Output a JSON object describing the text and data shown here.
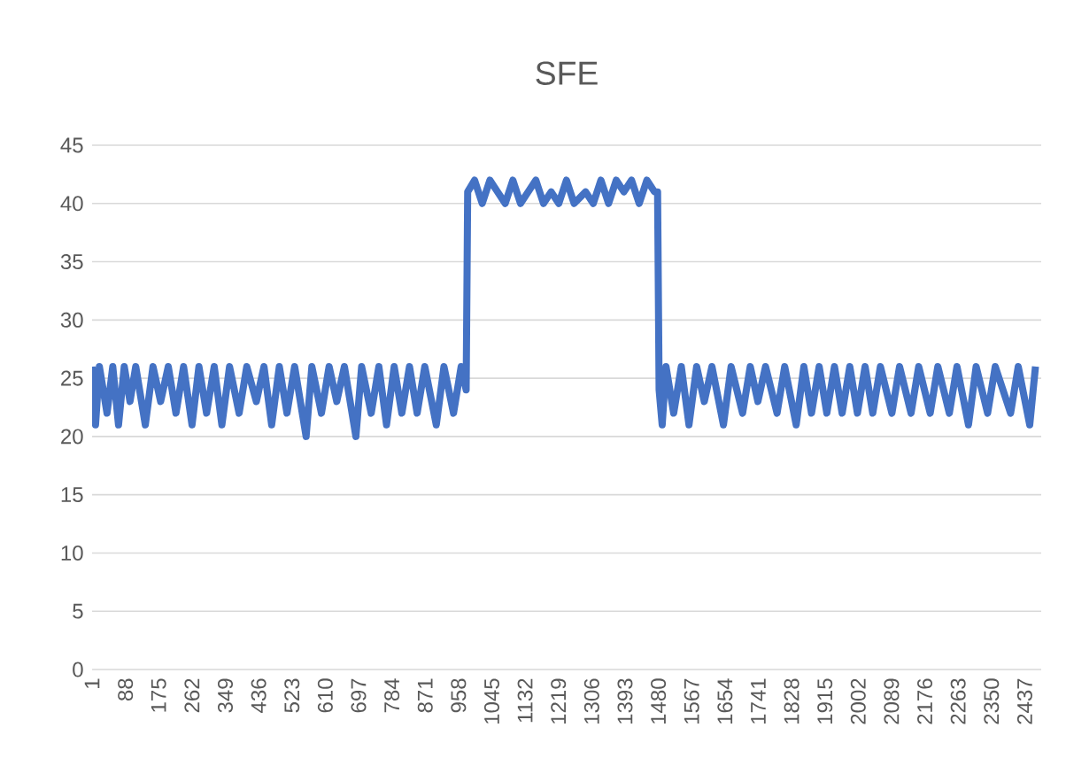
{
  "chart_data": {
    "type": "line",
    "title": "SFE",
    "x": [
      1,
      10,
      20,
      40,
      55,
      70,
      85,
      100,
      115,
      140,
      160,
      180,
      200,
      220,
      240,
      262,
      280,
      300,
      320,
      340,
      360,
      385,
      405,
      430,
      450,
      470,
      490,
      510,
      530,
      560,
      575,
      600,
      620,
      640,
      660,
      690,
      705,
      730,
      750,
      770,
      790,
      810,
      830,
      850,
      870,
      900,
      920,
      945,
      965,
      978,
      982,
      1000,
      1020,
      1040,
      1060,
      1080,
      1100,
      1120,
      1140,
      1160,
      1180,
      1200,
      1220,
      1240,
      1260,
      1290,
      1310,
      1330,
      1350,
      1370,
      1390,
      1410,
      1430,
      1450,
      1470,
      1478,
      1482,
      1490,
      1500,
      1520,
      1540,
      1560,
      1580,
      1600,
      1620,
      1650,
      1670,
      1700,
      1720,
      1740,
      1760,
      1790,
      1810,
      1840,
      1860,
      1880,
      1900,
      1920,
      1940,
      1960,
      1980,
      2000,
      2020,
      2040,
      2060,
      2090,
      2110,
      2140,
      2160,
      2190,
      2210,
      2240,
      2260,
      2290,
      2310,
      2340,
      2360,
      2400,
      2420,
      2450,
      2465
    ],
    "series": [
      {
        "color": "#4472c4",
        "values": [
          26,
          21,
          26,
          22,
          26,
          21,
          26,
          23,
          26,
          21,
          26,
          23,
          26,
          22,
          26,
          21,
          26,
          22,
          26,
          21,
          26,
          22,
          26,
          23,
          26,
          21,
          26,
          22,
          26,
          20,
          26,
          22,
          26,
          23,
          26,
          20,
          26,
          22,
          26,
          21,
          26,
          22,
          26,
          22,
          26,
          21,
          26,
          22,
          26,
          24,
          41,
          42,
          40,
          42,
          41,
          40,
          42,
          40,
          41,
          42,
          40,
          41,
          40,
          42,
          40,
          41,
          40,
          42,
          40,
          42,
          41,
          42,
          40,
          42,
          41,
          41,
          24,
          21,
          26,
          22,
          26,
          21,
          26,
          23,
          26,
          21,
          26,
          22,
          26,
          23,
          26,
          22,
          26,
          21,
          26,
          22,
          26,
          22,
          26,
          22,
          26,
          22,
          26,
          22,
          26,
          22,
          26,
          22,
          26,
          22,
          26,
          22,
          26,
          21,
          26,
          22,
          26,
          22,
          26,
          21,
          26
        ]
      }
    ],
    "xlim": [
      1,
      2480
    ],
    "xticks": [
      1,
      88,
      175,
      262,
      349,
      436,
      523,
      610,
      697,
      784,
      871,
      958,
      1045,
      1132,
      1219,
      1306,
      1393,
      1480,
      1567,
      1654,
      1741,
      1828,
      1915,
      2002,
      2089,
      2176,
      2263,
      2350,
      2437
    ],
    "ylim": [
      0,
      45
    ],
    "yticks": [
      0,
      5,
      10,
      15,
      20,
      25,
      30,
      35,
      40,
      45
    ],
    "grid": "y"
  }
}
